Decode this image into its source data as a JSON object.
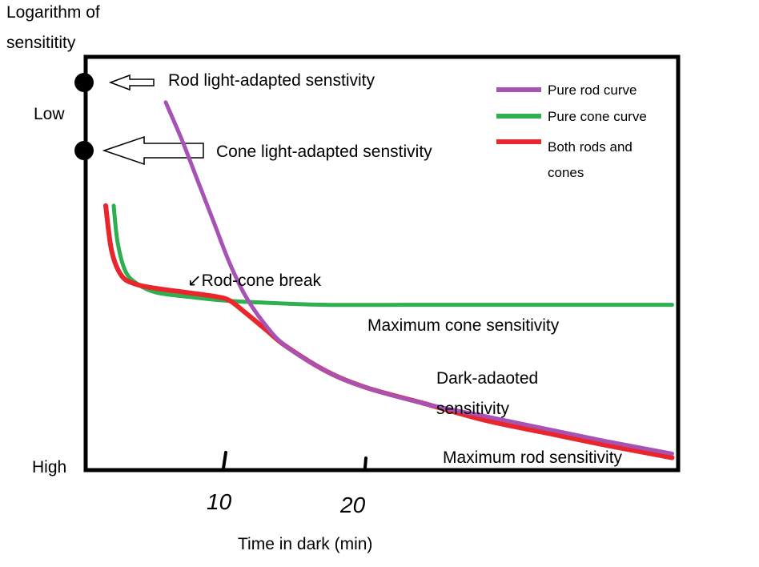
{
  "chart_data": {
    "type": "line",
    "ylabel": [
      "Logarithm of",
      "sensititity"
    ],
    "xlabel": "Time in dark (min)",
    "y_scale_labels": {
      "top": "Low",
      "bottom": "High"
    },
    "x_ticks": [
      "10",
      "20"
    ],
    "legend_position": "top-right",
    "legend": [
      {
        "label": [
          "Pure rod curve"
        ],
        "color": "#a653b5"
      },
      {
        "label": [
          "Pure cone curve"
        ],
        "color": "#2fb050"
      },
      {
        "label": [
          "Both rods and",
          "cones"
        ],
        "color": "#e8262b"
      }
    ],
    "markers": [
      {
        "label": "Rod light-adapted senstivity"
      },
      {
        "label": "Cone light-adapted senstivity"
      }
    ],
    "annotations": {
      "rod_cone_break": "↙Rod-cone break",
      "max_cone": "Maximum cone sensitivity",
      "dark_adapted": [
        "Dark-adaoted",
        "sensitivity"
      ],
      "max_rod": "Maximum rod sensitivity"
    },
    "xlim": [
      0,
      29.6
    ],
    "series": [
      {
        "key": "rod",
        "color": "#a653b5",
        "x": [
          4.0,
          4.8,
          5.6,
          6.4,
          7.2,
          8.0,
          9.0,
          10.0,
          12.0,
          14.0,
          17.0,
          20.0,
          23.0,
          26.0,
          29.3
        ],
        "y": [
          0.89,
          0.8,
          0.7,
          0.6,
          0.5,
          0.42,
          0.35,
          0.3,
          0.24,
          0.2,
          0.16,
          0.13,
          0.1,
          0.07,
          0.04
        ]
      },
      {
        "key": "cone",
        "color": "#2fb050",
        "x": [
          1.4,
          1.6,
          2.0,
          2.6,
          3.5,
          5.0,
          7.0,
          9.0,
          12.0,
          16.0,
          20.0,
          24.0,
          29.3
        ],
        "y": [
          0.64,
          0.55,
          0.48,
          0.45,
          0.43,
          0.42,
          0.41,
          0.405,
          0.4,
          0.4,
          0.4,
          0.4,
          0.4
        ]
      },
      {
        "key": "both",
        "color": "#e8262b",
        "x": [
          1.0,
          1.3,
          1.8,
          2.5,
          3.5,
          5.0,
          6.5,
          7.2,
          8.0,
          9.0,
          10.0,
          12.0,
          14.0,
          17.0,
          20.0,
          23.0,
          26.0,
          29.3
        ],
        "y": [
          0.64,
          0.53,
          0.47,
          0.45,
          0.44,
          0.43,
          0.42,
          0.41,
          0.38,
          0.34,
          0.3,
          0.24,
          0.2,
          0.16,
          0.12,
          0.09,
          0.06,
          0.03
        ]
      }
    ]
  }
}
